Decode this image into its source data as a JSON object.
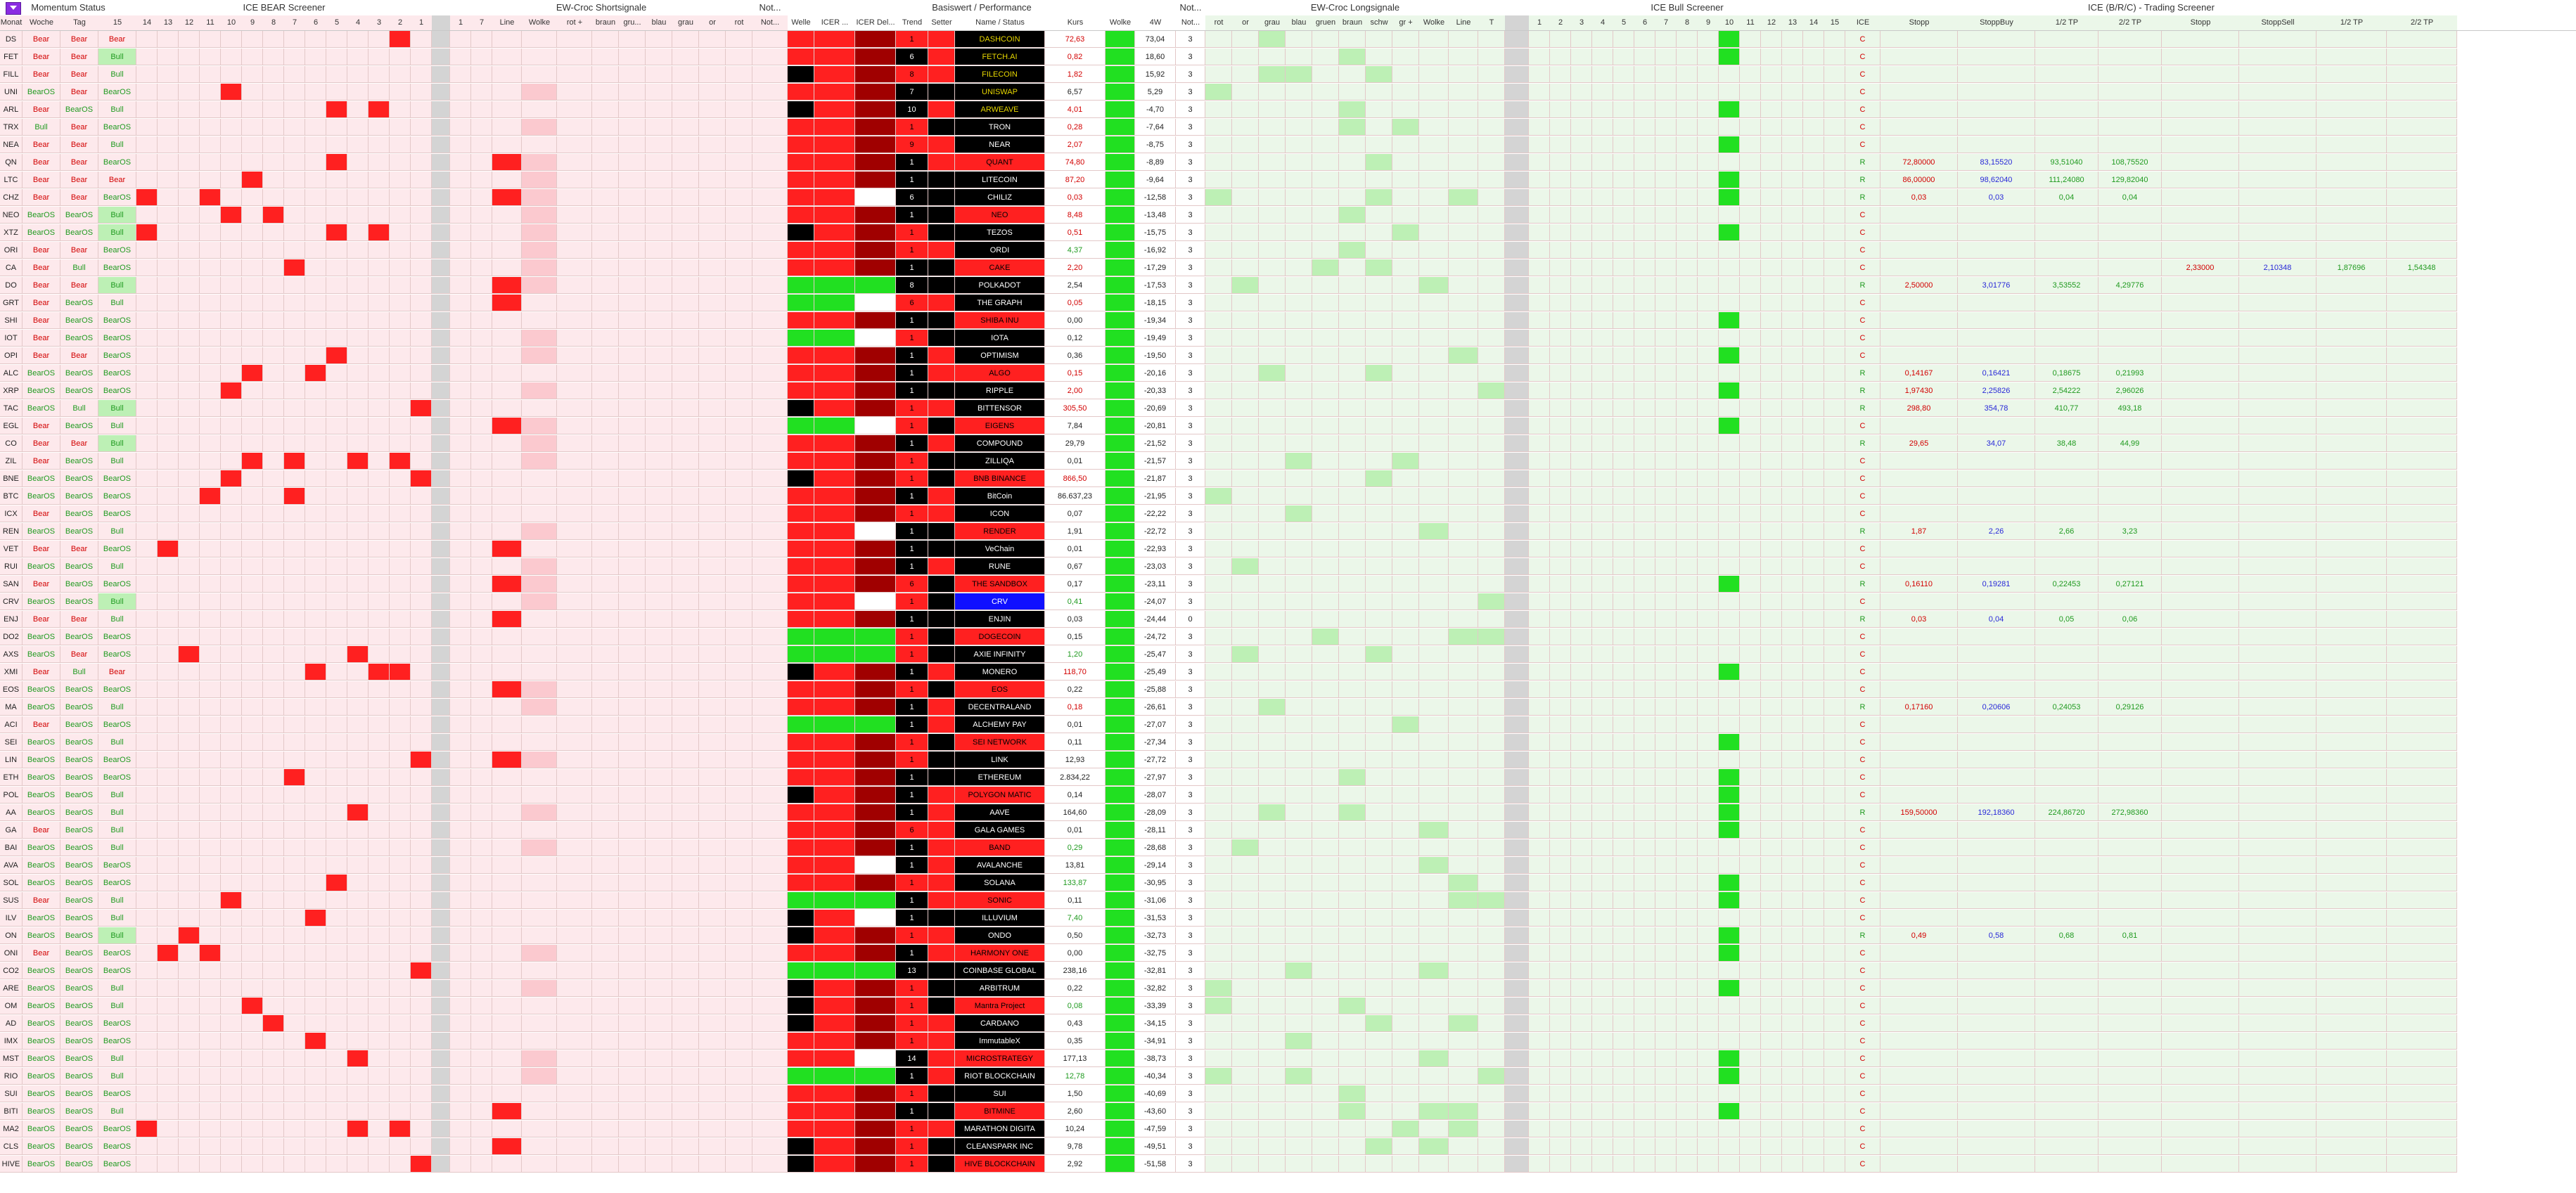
{
  "groups": [
    {
      "key": "momentum",
      "label": "Momentum Status"
    },
    {
      "key": "icebear",
      "label": "ICE BEAR Screener"
    },
    {
      "key": "ewshort",
      "label": "EW-Croc Shortsignale"
    },
    {
      "key": "notice",
      "label": "Not..."
    },
    {
      "key": "perf",
      "label": "Basiswert / Performance"
    },
    {
      "key": "notice2",
      "label": "Not..."
    },
    {
      "key": "ewlong",
      "label": "EW-Croc Longsignale"
    },
    {
      "key": "icebull",
      "label": "ICE Bull Screener"
    },
    {
      "key": "trading",
      "label": "ICE (B/R/C) - Trading Screener"
    }
  ],
  "headers": [
    "Monat",
    "Woche",
    "Tag",
    "15",
    "14",
    "13",
    "12",
    "11",
    "10",
    "9",
    "8",
    "7",
    "6",
    "5",
    "4",
    "3",
    "2",
    "1",
    "",
    "1",
    "7",
    "Line",
    "Wolke",
    "rot +",
    "braun",
    "gru...",
    "blau",
    "grau",
    "or",
    "rot",
    "Not...",
    "Welle",
    "ICER ...",
    "ICER Del...",
    "Trend",
    "Setter",
    "Name / Status",
    "Kurs",
    "Wolke",
    "4W",
    "Not...",
    "rot",
    "or",
    "grau",
    "blau",
    "gruen",
    "braun",
    "schw",
    "gr +",
    "Wolke",
    "Line",
    "T",
    "",
    "1",
    "2",
    "3",
    "4",
    "5",
    "6",
    "7",
    "8",
    "9",
    "10",
    "11",
    "12",
    "13",
    "14",
    "15",
    "ICE",
    "Stopp",
    "StoppBuy",
    "1/2 TP",
    "2/2 TP",
    "Stopp",
    "StoppSell",
    "1/2 TP",
    "2/2 TP"
  ],
  "rows": [
    {
      "id": "DS",
      "m": "Bear",
      "w": "Bear",
      "t": "Bear",
      "name": "DASHCOIN",
      "kurs": "72,63",
      "kc": "r",
      "p4w": "73,04",
      "wl": "3",
      "trend": "1"
    },
    {
      "id": "FET",
      "m": "Bear",
      "w": "Bear",
      "t": "Bull",
      "name": "FETCH.AI",
      "kurs": "0,82",
      "kc": "r",
      "p4w": "18,60",
      "wl": "3",
      "trend": "6"
    },
    {
      "id": "FILL",
      "m": "Bear",
      "w": "Bear",
      "t": "Bull",
      "name": "FILECOIN",
      "kurs": "1,82",
      "kc": "r",
      "p4w": "15,92",
      "wl": "3",
      "trend": "8"
    },
    {
      "id": "UNI",
      "m": "BearOS",
      "w": "Bear",
      "t": "BearOS",
      "name": "UNISWAP",
      "kurs": "6,57",
      "kc": "b",
      "p4w": "5,29",
      "wl": "3",
      "trend": "7"
    },
    {
      "id": "ARL",
      "m": "Bear",
      "w": "BearOS",
      "t": "Bull",
      "name": "ARWEAVE",
      "kurs": "4,01",
      "kc": "r",
      "p4w": "-4,70",
      "wl": "3",
      "trend": "10"
    },
    {
      "id": "TRX",
      "m": "Bull",
      "w": "Bear",
      "t": "BearOS",
      "name": "TRON",
      "kurs": "0,28",
      "kc": "r",
      "p4w": "-7,64",
      "wl": "3",
      "trend": "1"
    },
    {
      "id": "NEA",
      "m": "Bear",
      "w": "Bear",
      "t": "Bull",
      "name": "NEAR",
      "kurs": "2,07",
      "kc": "r",
      "p4w": "-8,75",
      "wl": "3",
      "trend": "9"
    },
    {
      "id": "QN",
      "m": "Bear",
      "w": "Bear",
      "t": "BearOS",
      "name": "QUANT",
      "kurs": "74,80",
      "kc": "r",
      "p4w": "-8,89",
      "wl": "3",
      "trend": "1"
    },
    {
      "id": "LTC",
      "m": "Bear",
      "w": "Bear",
      "t": "Bear",
      "name": "LITECOIN",
      "kurs": "87,20",
      "kc": "r",
      "p4w": "-9,64",
      "wl": "3",
      "trend": "1"
    },
    {
      "id": "CHZ",
      "m": "Bear",
      "w": "Bear",
      "t": "BearOS",
      "name": "CHILIZ",
      "kurs": "0,03",
      "kc": "r",
      "p4w": "-12,58",
      "wl": "3",
      "trend": "6"
    },
    {
      "id": "NEO",
      "m": "BearOS",
      "w": "BearOS",
      "t": "Bull",
      "name": "NEO",
      "kurs": "8,48",
      "kc": "r",
      "p4w": "-13,48",
      "wl": "3",
      "trend": "1"
    },
    {
      "id": "XTZ",
      "m": "BearOS",
      "w": "BearOS",
      "t": "Bull",
      "name": "TEZOS",
      "kurs": "0,51",
      "kc": "r",
      "p4w": "-15,75",
      "wl": "3",
      "trend": "1"
    },
    {
      "id": "ORI",
      "m": "Bear",
      "w": "Bear",
      "t": "BearOS",
      "name": "ORDI",
      "kurs": "4,37",
      "kc": "g",
      "p4w": "-16,92",
      "wl": "3",
      "trend": "1"
    },
    {
      "id": "CA",
      "m": "Bear",
      "w": "Bull",
      "t": "BearOS",
      "name": "CAKE",
      "kurs": "2,20",
      "kc": "r",
      "p4w": "-17,29",
      "wl": "3",
      "trend": "1"
    },
    {
      "id": "DO",
      "m": "Bear",
      "w": "Bear",
      "t": "Bull",
      "name": "POLKADOT",
      "kurs": "2,54",
      "kc": "k",
      "p4w": "-17,53",
      "wl": "3",
      "trend": "8"
    },
    {
      "id": "GRT",
      "m": "Bear",
      "w": "BearOS",
      "t": "Bull",
      "name": "THE GRAPH",
      "kurs": "0,05",
      "kc": "r",
      "p4w": "-18,15",
      "wl": "3",
      "trend": "6"
    },
    {
      "id": "SHI",
      "m": "Bear",
      "w": "BearOS",
      "t": "BearOS",
      "name": "SHIBA INU",
      "kurs": "0,00",
      "kc": "k",
      "p4w": "-19,34",
      "wl": "3",
      "trend": "1"
    },
    {
      "id": "IOT",
      "m": "Bear",
      "w": "BearOS",
      "t": "BearOS",
      "name": "IOTA",
      "kurs": "0,12",
      "kc": "k",
      "p4w": "-19,49",
      "wl": "3",
      "trend": "1"
    },
    {
      "id": "OPI",
      "m": "Bear",
      "w": "Bear",
      "t": "BearOS",
      "name": "OPTIMISM",
      "kurs": "0,36",
      "kc": "k",
      "p4w": "-19,50",
      "wl": "3",
      "trend": "1"
    },
    {
      "id": "ALC",
      "m": "BearOS",
      "w": "BearOS",
      "t": "BearOS",
      "name": "ALGO",
      "kurs": "0,15",
      "kc": "r",
      "p4w": "-20,16",
      "wl": "3",
      "trend": "1"
    },
    {
      "id": "XRP",
      "m": "BearOS",
      "w": "BearOS",
      "t": "BearOS",
      "name": "RIPPLE",
      "kurs": "2,00",
      "kc": "r",
      "p4w": "-20,33",
      "wl": "3",
      "trend": "1"
    },
    {
      "id": "TAC",
      "m": "BearOS",
      "w": "Bull",
      "t": "Bull",
      "name": "BITTENSOR",
      "kurs": "305,50",
      "kc": "r",
      "p4w": "-20,69",
      "wl": "3",
      "trend": "1"
    },
    {
      "id": "EGL",
      "m": "Bear",
      "w": "BearOS",
      "t": "Bull",
      "name": "EIGENS",
      "kurs": "7,84",
      "kc": "k",
      "p4w": "-20,81",
      "wl": "3",
      "trend": "1"
    },
    {
      "id": "CO",
      "m": "Bear",
      "w": "Bear",
      "t": "Bull",
      "name": "COMPOUND",
      "kurs": "29,79",
      "kc": "k",
      "p4w": "-21,52",
      "wl": "3",
      "trend": "1"
    },
    {
      "id": "ZIL",
      "m": "Bear",
      "w": "BearOS",
      "t": "Bull",
      "name": "ZILLIQA",
      "kurs": "0,01",
      "kc": "k",
      "p4w": "-21,57",
      "wl": "3",
      "trend": "1"
    },
    {
      "id": "BNE",
      "m": "BearOS",
      "w": "BearOS",
      "t": "BearOS",
      "name": "BNB BINANCE",
      "kurs": "866,50",
      "kc": "r",
      "p4w": "-21,87",
      "wl": "3",
      "trend": "1"
    },
    {
      "id": "BTC",
      "m": "BearOS",
      "w": "BearOS",
      "t": "BearOS",
      "name": "BitCoin",
      "kurs": "86.637,23",
      "kc": "k",
      "p4w": "-21,95",
      "wl": "3",
      "trend": "1"
    },
    {
      "id": "ICX",
      "m": "Bear",
      "w": "BearOS",
      "t": "BearOS",
      "name": "ICON",
      "kurs": "0,07",
      "kc": "k",
      "p4w": "-22,22",
      "wl": "3",
      "trend": "1"
    },
    {
      "id": "REN",
      "m": "BearOS",
      "w": "BearOS",
      "t": "Bull",
      "name": "RENDER",
      "kurs": "1,91",
      "kc": "k",
      "p4w": "-22,72",
      "wl": "3",
      "trend": "1"
    },
    {
      "id": "VET",
      "m": "Bear",
      "w": "Bear",
      "t": "BearOS",
      "name": "VeChain",
      "kurs": "0,01",
      "kc": "k",
      "p4w": "-22,93",
      "wl": "3",
      "trend": "1"
    },
    {
      "id": "RUI",
      "m": "BearOS",
      "w": "BearOS",
      "t": "Bull",
      "name": "RUNE",
      "kurs": "0,67",
      "kc": "k",
      "p4w": "-23,03",
      "wl": "3",
      "trend": "1"
    },
    {
      "id": "SAN",
      "m": "Bear",
      "w": "BearOS",
      "t": "BearOS",
      "name": "THE SANDBOX",
      "kurs": "0,17",
      "kc": "k",
      "p4w": "-23,11",
      "wl": "3",
      "trend": "6"
    },
    {
      "id": "CRV",
      "m": "BearOS",
      "w": "BearOS",
      "t": "Bull",
      "name": "CRV",
      "kurs": "0,41",
      "kc": "g",
      "p4w": "-24,07",
      "wl": "3",
      "trend": "1"
    },
    {
      "id": "ENJ",
      "m": "Bear",
      "w": "Bear",
      "t": "Bull",
      "name": "ENJIN",
      "kurs": "0,03",
      "kc": "k",
      "p4w": "-24,44",
      "wl": "0",
      "trend": "1"
    },
    {
      "id": "DO2",
      "m": "BearOS",
      "w": "BearOS",
      "t": "BearOS",
      "name": "DOGECOIN",
      "kurs": "0,15",
      "kc": "k",
      "p4w": "-24,72",
      "wl": "3",
      "trend": "1"
    },
    {
      "id": "AXS",
      "m": "BearOS",
      "w": "Bear",
      "t": "BearOS",
      "name": "AXIE INFINITY",
      "kurs": "1,20",
      "kc": "g",
      "p4w": "-25,47",
      "wl": "3",
      "trend": "1"
    },
    {
      "id": "XMI",
      "m": "Bear",
      "w": "Bull",
      "t": "Bear",
      "name": "MONERO",
      "kurs": "118,70",
      "kc": "r",
      "p4w": "-25,49",
      "wl": "3",
      "trend": "1"
    },
    {
      "id": "EOS",
      "m": "BearOS",
      "w": "BearOS",
      "t": "BearOS",
      "name": "EOS",
      "kurs": "0,22",
      "kc": "k",
      "p4w": "-25,88",
      "wl": "3",
      "trend": "1"
    },
    {
      "id": "MA",
      "m": "BearOS",
      "w": "BearOS",
      "t": "Bull",
      "name": "DECENTRALAND",
      "kurs": "0,18",
      "kc": "r",
      "p4w": "-26,61",
      "wl": "3",
      "trend": "1"
    },
    {
      "id": "ACI",
      "m": "Bear",
      "w": "BearOS",
      "t": "BearOS",
      "name": "ALCHEMY PAY",
      "kurs": "0,01",
      "kc": "k",
      "p4w": "-27,07",
      "wl": "3",
      "trend": "1"
    },
    {
      "id": "SEI",
      "m": "BearOS",
      "w": "BearOS",
      "t": "Bull",
      "name": "SEI NETWORK",
      "kurs": "0,11",
      "kc": "k",
      "p4w": "-27,34",
      "wl": "3",
      "trend": "1"
    },
    {
      "id": "LIN",
      "m": "BearOS",
      "w": "BearOS",
      "t": "BearOS",
      "name": "LINK",
      "kurs": "12,93",
      "kc": "k",
      "p4w": "-27,72",
      "wl": "3",
      "trend": "1"
    },
    {
      "id": "ETH",
      "m": "BearOS",
      "w": "BearOS",
      "t": "BearOS",
      "name": "ETHEREUM",
      "kurs": "2.834,22",
      "kc": "k",
      "p4w": "-27,97",
      "wl": "3",
      "trend": "1"
    },
    {
      "id": "POL",
      "m": "BearOS",
      "w": "BearOS",
      "t": "Bull",
      "name": "POLYGON MATIC",
      "kurs": "0,14",
      "kc": "k",
      "p4w": "-28,07",
      "wl": "3",
      "trend": "1"
    },
    {
      "id": "AA",
      "m": "BearOS",
      "w": "BearOS",
      "t": "Bull",
      "name": "AAVE",
      "kurs": "164,60",
      "kc": "k",
      "p4w": "-28,09",
      "wl": "3",
      "trend": "1"
    },
    {
      "id": "GA",
      "m": "Bear",
      "w": "BearOS",
      "t": "Bull",
      "name": "GALA GAMES",
      "kurs": "0,01",
      "kc": "k",
      "p4w": "-28,11",
      "wl": "3",
      "trend": "6"
    },
    {
      "id": "BAI",
      "m": "BearOS",
      "w": "BearOS",
      "t": "Bull",
      "name": "BAND",
      "kurs": "0,29",
      "kc": "g",
      "p4w": "-28,68",
      "wl": "3",
      "trend": "1"
    },
    {
      "id": "AVA",
      "m": "BearOS",
      "w": "BearOS",
      "t": "BearOS",
      "name": "AVALANCHE",
      "kurs": "13,81",
      "kc": "k",
      "p4w": "-29,14",
      "wl": "3",
      "trend": "1"
    },
    {
      "id": "SOL",
      "m": "BearOS",
      "w": "BearOS",
      "t": "BearOS",
      "name": "SOLANA",
      "kurs": "133,87",
      "kc": "g",
      "p4w": "-30,95",
      "wl": "3",
      "trend": "1"
    },
    {
      "id": "SUS",
      "m": "Bear",
      "w": "BearOS",
      "t": "Bull",
      "name": "SONIC",
      "kurs": "0,11",
      "kc": "k",
      "p4w": "-31,06",
      "wl": "3",
      "trend": "1"
    },
    {
      "id": "ILV",
      "m": "BearOS",
      "w": "BearOS",
      "t": "Bull",
      "name": "ILLUVIUM",
      "kurs": "7,40",
      "kc": "g",
      "p4w": "-31,53",
      "wl": "3",
      "trend": "1"
    },
    {
      "id": "ON",
      "m": "BearOS",
      "w": "BearOS",
      "t": "Bull",
      "name": "ONDO",
      "kurs": "0,50",
      "kc": "k",
      "p4w": "-32,73",
      "wl": "3",
      "trend": "1"
    },
    {
      "id": "ONI",
      "m": "Bear",
      "w": "BearOS",
      "t": "BearOS",
      "name": "HARMONY ONE",
      "kurs": "0,00",
      "kc": "k",
      "p4w": "-32,75",
      "wl": "3",
      "trend": "1"
    },
    {
      "id": "CO2",
      "m": "BearOS",
      "w": "BearOS",
      "t": "BearOS",
      "name": "COINBASE GLOBAL",
      "kurs": "238,16",
      "kc": "k",
      "p4w": "-32,81",
      "wl": "3",
      "trend": "13"
    },
    {
      "id": "ARE",
      "m": "BearOS",
      "w": "BearOS",
      "t": "Bull",
      "name": "ARBITRUM",
      "kurs": "0,22",
      "kc": "k",
      "p4w": "-32,82",
      "wl": "3",
      "trend": "1"
    },
    {
      "id": "OM",
      "m": "BearOS",
      "w": "BearOS",
      "t": "Bull",
      "name": "Mantra Project",
      "kurs": "0,08",
      "kc": "g",
      "p4w": "-33,39",
      "wl": "3",
      "trend": "1"
    },
    {
      "id": "AD",
      "m": "BearOS",
      "w": "BearOS",
      "t": "BearOS",
      "name": "CARDANO",
      "kurs": "0,43",
      "kc": "k",
      "p4w": "-34,15",
      "wl": "3",
      "trend": "1"
    },
    {
      "id": "IMX",
      "m": "BearOS",
      "w": "BearOS",
      "t": "BearOS",
      "name": "ImmutableX",
      "kurs": "0,35",
      "kc": "k",
      "p4w": "-34,91",
      "wl": "3",
      "trend": "1"
    },
    {
      "id": "MST",
      "m": "BearOS",
      "w": "BearOS",
      "t": "Bull",
      "name": "MICROSTRATEGY",
      "kurs": "177,13",
      "kc": "k",
      "p4w": "-38,73",
      "wl": "3",
      "trend": "14"
    },
    {
      "id": "RIO",
      "m": "BearOS",
      "w": "BearOS",
      "t": "Bull",
      "name": "RIOT BLOCKCHAIN",
      "kurs": "12,78",
      "kc": "g",
      "p4w": "-40,34",
      "wl": "3",
      "trend": "1"
    },
    {
      "id": "SUI",
      "m": "BearOS",
      "w": "BearOS",
      "t": "BearOS",
      "name": "SUI",
      "kurs": "1,50",
      "kc": "k",
      "p4w": "-40,69",
      "wl": "3",
      "trend": "1"
    },
    {
      "id": "BITI",
      "m": "BearOS",
      "w": "BearOS",
      "t": "Bull",
      "name": "BITMINE",
      "kurs": "2,60",
      "kc": "k",
      "p4w": "-43,60",
      "wl": "3",
      "trend": "1"
    },
    {
      "id": "MA2",
      "m": "BearOS",
      "w": "BearOS",
      "t": "BearOS",
      "name": "MARATHON DIGITA",
      "kurs": "10,24",
      "kc": "k",
      "p4w": "-47,59",
      "wl": "3",
      "trend": "1"
    },
    {
      "id": "CLS",
      "m": "BearOS",
      "w": "BearOS",
      "t": "BearOS",
      "name": "CLEANSPARK INC",
      "kurs": "9,78",
      "kc": "k",
      "p4w": "-49,51",
      "wl": "3",
      "trend": "1"
    },
    {
      "id": "HIVE",
      "m": "BearOS",
      "w": "BearOS",
      "t": "BearOS",
      "name": "HIVE BLOCKCHAIN",
      "kurs": "2,92",
      "kc": "k",
      "p4w": "-51,58",
      "wl": "3",
      "trend": "1"
    }
  ],
  "trading": [
    {
      "row": 2,
      "ice": "C"
    },
    {
      "row": 7,
      "ice": "R",
      "stopp": "72,80000",
      "buy": "83,15520",
      "tp1": "93,51040",
      "tp2": "108,75520"
    },
    {
      "row": 8,
      "ice": "R",
      "stopp": "86,00000",
      "buy": "98,62040",
      "tp1": "111,24080",
      "tp2": "129,82040"
    },
    {
      "row": 9,
      "ice": "R",
      "stopp": "0,03",
      "buy": "0,03",
      "tp1": "0,04",
      "tp2": "0,04"
    },
    {
      "row": 13,
      "ice": "C",
      "sstopp": "2,33000",
      "ssell": "2,10348",
      "stp1": "1,87696",
      "stp2": "1,54348"
    },
    {
      "row": 14,
      "ice": "R",
      "stopp": "2,50000",
      "buy": "3,01776",
      "tp1": "3,53552",
      "tp2": "4,29776"
    },
    {
      "row": 19,
      "ice": "R",
      "stopp": "0,14167",
      "buy": "0,16421",
      "tp1": "0,18675",
      "tp2": "0,21993"
    },
    {
      "row": 20,
      "ice": "R",
      "stopp": "1,97430",
      "buy": "2,25826",
      "tp1": "2,54222",
      "tp2": "2,96026"
    },
    {
      "row": 21,
      "ice": "R",
      "stopp": "298,80",
      "buy": "354,78",
      "tp1": "410,77",
      "tp2": "493,18"
    },
    {
      "row": 23,
      "ice": "R",
      "stopp": "29,65",
      "buy": "34,07",
      "tp1": "38,48",
      "tp2": "44,99"
    },
    {
      "row": 28,
      "ice": "R",
      "stopp": "1,87",
      "buy": "2,26",
      "tp1": "2,66",
      "tp2": "3,23"
    },
    {
      "row": 31,
      "ice": "R",
      "stopp": "0,16110",
      "buy": "0,19281",
      "tp1": "0,22453",
      "tp2": "0,27121"
    },
    {
      "row": 33,
      "ice": "R",
      "stopp": "0,03",
      "buy": "0,04",
      "tp1": "0,05",
      "tp2": "0,06"
    },
    {
      "row": 38,
      "ice": "R",
      "stopp": "0,17160",
      "buy": "0,20606",
      "tp1": "0,24053",
      "tp2": "0,29126"
    },
    {
      "row": 44,
      "ice": "R",
      "stopp": "159,50000",
      "buy": "192,18360",
      "tp1": "224,86720",
      "tp2": "272,98360"
    },
    {
      "row": 51,
      "ice": "R",
      "stopp": "0,49",
      "buy": "0,58",
      "tp1": "0,68",
      "tp2": "0,81"
    }
  ]
}
